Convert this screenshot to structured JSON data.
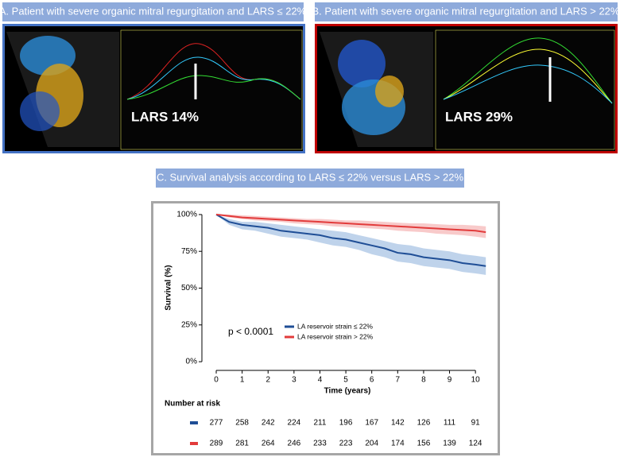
{
  "panels": [
    {
      "title": "A. Patient with severe organic mitral regurgitation and LARS ≤ 22%",
      "label": "LARS 14%"
    },
    {
      "title": "B. Patient with severe organic mitral regurgitation and LARS > 22%",
      "label": "LARS 29%"
    }
  ],
  "chart_data": {
    "type": "line",
    "title": "C. Survival analysis according to LARS ≤ 22% versus LARS > 22%",
    "xlabel": "Time (years)",
    "ylabel": "Survival (%)",
    "annotation": "p < 0.0001",
    "x": [
      0,
      0.5,
      1,
      1.5,
      2,
      2.5,
      3,
      3.5,
      4,
      4.5,
      5,
      5.5,
      6,
      6.5,
      7,
      7.5,
      8,
      8.5,
      9,
      9.5,
      10,
      10.4
    ],
    "series": [
      {
        "name": "LA reservoir strain ≤ 22%",
        "color": "#1f4e96",
        "band_color": "#a9c4e4",
        "values": [
          100,
          95,
          93,
          92,
          91,
          89,
          88,
          87,
          86,
          84,
          83,
          81,
          79,
          77,
          74,
          73,
          71,
          70,
          69,
          67,
          66,
          65
        ],
        "lower": [
          100,
          93,
          90,
          89,
          87,
          85,
          84,
          83,
          81,
          79,
          78,
          76,
          73,
          71,
          68,
          67,
          65,
          64,
          63,
          61,
          60,
          59
        ],
        "upper": [
          100,
          97,
          95,
          95,
          94,
          93,
          92,
          91,
          90,
          89,
          88,
          86,
          84,
          82,
          80,
          79,
          77,
          76,
          75,
          73,
          72,
          71
        ]
      },
      {
        "name": "LA reservoir strain > 22%",
        "color": "#e23b3b",
        "band_color": "#f6b8b8",
        "values": [
          100,
          99,
          98,
          97.5,
          97,
          96.5,
          96,
          95.5,
          95,
          94.5,
          94,
          93.5,
          93,
          92.5,
          92,
          91.5,
          91,
          90.5,
          90,
          89.5,
          89,
          88
        ],
        "lower": [
          100,
          98,
          97,
          96,
          95.5,
          95,
          94,
          93.5,
          93,
          92,
          91.5,
          91,
          90.5,
          90,
          89,
          88.5,
          88,
          87,
          86.5,
          86,
          85,
          84
        ],
        "upper": [
          100,
          100,
          99.5,
          99,
          98.5,
          98,
          97.5,
          97,
          97,
          96.5,
          96,
          96,
          95.5,
          95,
          94.5,
          94,
          94,
          93.5,
          93,
          93,
          92.5,
          92
        ]
      }
    ],
    "xlim": [
      -0.43,
      10.67
    ],
    "ylim": [
      -3.2,
      103.2
    ],
    "xticks": [
      0,
      1,
      2,
      3,
      4,
      5,
      6,
      7,
      8,
      9,
      10
    ],
    "yticks": [
      {
        "value": 0,
        "label": "0%"
      },
      {
        "value": 25,
        "label": "25%"
      },
      {
        "value": 50,
        "label": "50%"
      },
      {
        "value": 75,
        "label": "75%"
      },
      {
        "value": 100,
        "label": "100%"
      }
    ],
    "risk_table": {
      "title": "Number at risk",
      "rows": [
        [
          277,
          258,
          242,
          224,
          211,
          196,
          167,
          142,
          126,
          111,
          91
        ],
        [
          289,
          281,
          264,
          246,
          233,
          223,
          204,
          174,
          156,
          139,
          124
        ]
      ]
    }
  }
}
